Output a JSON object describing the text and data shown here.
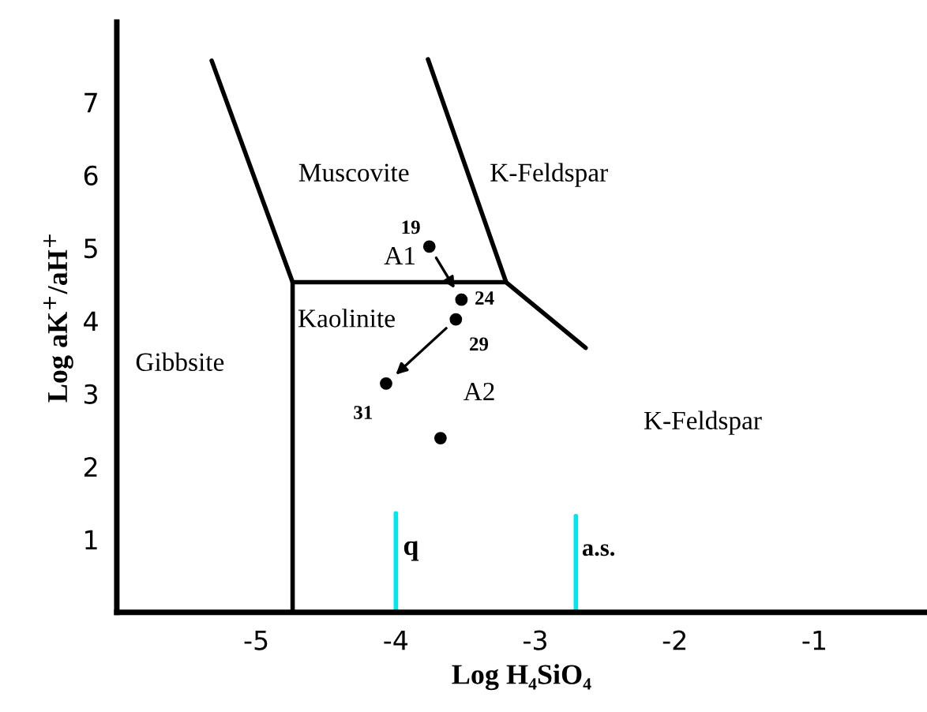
{
  "chart_data": {
    "type": "line",
    "xlabel": "Log H₄SiO₄",
    "ylabel": "Log aK$^{+}$/aH$^{+}$",
    "xlim": [
      -6,
      -0.2
    ],
    "ylim": [
      0,
      8.1
    ],
    "xticks": [
      -5,
      -4,
      -3,
      -2,
      -1
    ],
    "yticks": [
      1,
      2,
      3,
      4,
      5,
      6,
      7
    ],
    "grid": false,
    "legend": false,
    "series": [
      {
        "color": "#000000",
        "x": [
          -4.74,
          -4.74
        ],
        "values": [
          0,
          4.53
        ]
      },
      {
        "color": "#000000",
        "x": [
          -5.32,
          -4.74,
          -3.21
        ],
        "values": [
          7.57,
          4.53,
          4.53
        ]
      },
      {
        "color": "#000000",
        "x": [
          -3.77,
          -3.21,
          -2.64
        ],
        "values": [
          7.59,
          4.53,
          3.63
        ]
      },
      {
        "name": "q",
        "color": "#00e5ee",
        "x": [
          -4.0,
          -4.0
        ],
        "values": [
          0,
          1.36
        ]
      },
      {
        "name": "a.s.",
        "color": "#00e5ee",
        "x": [
          -2.71,
          -2.71
        ],
        "values": [
          0,
          1.32
        ]
      },
      {
        "type": "scatter",
        "color": "#000000",
        "marker": "circle",
        "x": [
          -3.76,
          -3.53,
          -3.57,
          -4.07,
          -3.68
        ],
        "values": [
          5.02,
          4.29,
          4.02,
          3.14,
          2.39
        ]
      }
    ],
    "annotations": [
      "Muscovite",
      "K-Feldspar",
      "Kaolinite",
      "Gibbsite",
      "K-Feldspar",
      "A2",
      {
        "text": "A1",
        "x": -3.53,
        "y": 4.29
      },
      {
        "text": "19",
        "x": -3.76,
        "y": 5.02
      },
      {
        "text": "24",
        "x": -3.53,
        "y": 4.29
      },
      {
        "text": "29",
        "x": -3.57,
        "y": 4.02
      },
      {
        "text": "31",
        "x": -4.07,
        "y": 3.14
      }
    ]
  }
}
